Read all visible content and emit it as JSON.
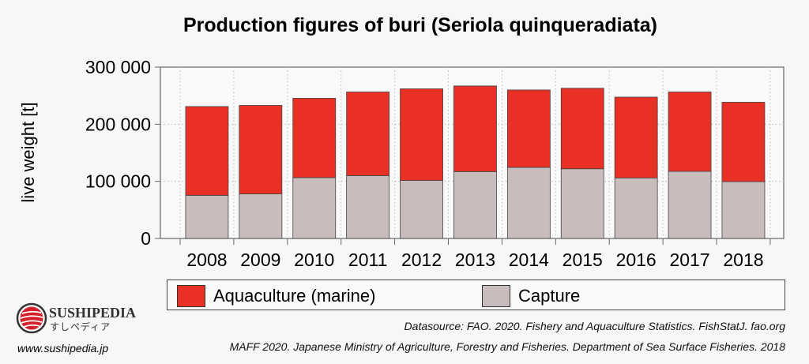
{
  "chart_data": {
    "type": "bar",
    "stacked": true,
    "title": "Production figures of buri (Seriola quinqueradiata)",
    "xlabel": "",
    "ylabel": "live weight [t]",
    "categories": [
      "2008",
      "2009",
      "2010",
      "2011",
      "2012",
      "2013",
      "2014",
      "2015",
      "2016",
      "2017",
      "2018"
    ],
    "ylim": [
      0,
      300000
    ],
    "yticks": [
      0,
      100000,
      200000,
      300000
    ],
    "ytick_labels": [
      "0",
      "100 000",
      "200 000",
      "300 000"
    ],
    "grid": true,
    "legend_position": "bottom",
    "series": [
      {
        "name": "Capture",
        "color": "#c9bcbc",
        "values": [
          75500,
          78000,
          106500,
          110000,
          101500,
          117000,
          124500,
          122000,
          106000,
          117500,
          99500
        ]
      },
      {
        "name": "Aquaculture (marine)",
        "color": "#e83025",
        "values": [
          155500,
          155000,
          139000,
          146500,
          160500,
          150000,
          135500,
          141000,
          141500,
          139000,
          139000
        ]
      }
    ]
  },
  "legend": {
    "aquaculture": "Aquaculture (marine)",
    "capture": "Capture"
  },
  "source": {
    "line1": "Datasource: FAO. 2020. Fishery and Aquaculture Statistics. FishStatJ. fao.org",
    "line2": "MAFF 2020. Japanese Ministry of Agriculture, Forestry and Fisheries. Department of Sea Surface Fisheries. 2018"
  },
  "logo": {
    "name": "SUSHIPEDIA",
    "jp": "すしペディア"
  },
  "url": "www.sushipedia.jp"
}
